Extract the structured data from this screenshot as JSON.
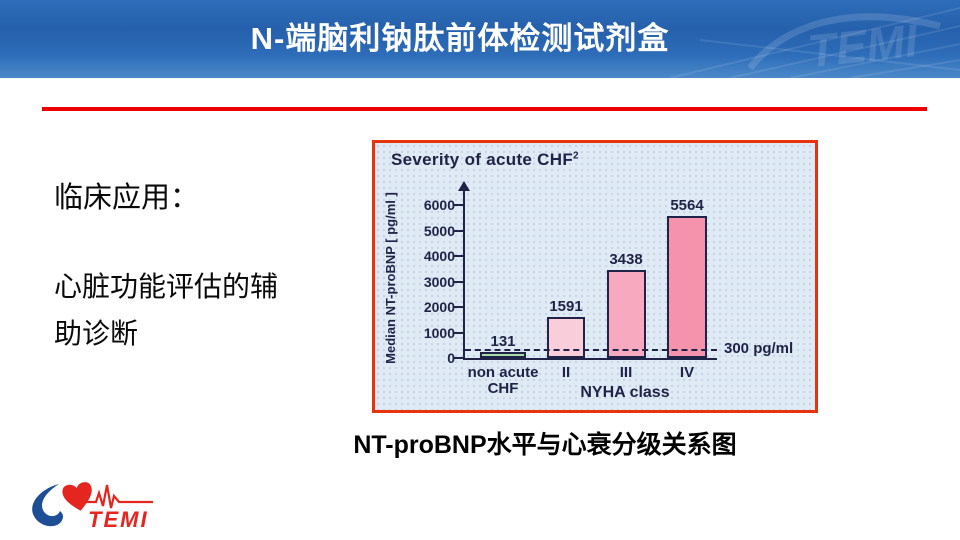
{
  "header": {
    "title": "N-端脑利钠肽前体检测试剂盒",
    "watermark": "TEMI"
  },
  "left_text": {
    "heading": "临床应用：",
    "line1": "心脏功能评估的辅",
    "line2": "助诊断"
  },
  "caption": "NT-proBNP水平与心衰分级关系图",
  "logo": {
    "text": "TEMI"
  },
  "colors": {
    "accent_red": "#ee0000",
    "header_blue_dark": "#2560ac",
    "header_blue_light": "#4c89c9",
    "chart_border": "#e8340c",
    "chart_bg": "#e0eaf5",
    "chart_ink": "#1f2347",
    "logo_red": "#e52520",
    "logo_blue": "#1e4e96"
  },
  "chart_data": {
    "type": "bar",
    "title": "Severity of acute CHF",
    "title_superscript": "2",
    "ylabel": "Median NT-proBNP [ pg/ml ]",
    "xlabel": "NYHA class",
    "categories": [
      "non acute\nCHF",
      "II",
      "III",
      "IV"
    ],
    "values": [
      131,
      1591,
      3438,
      5564
    ],
    "bar_colors": [
      "#a8dca8",
      "#f9cdd9",
      "#f6a9bf",
      "#f593ad"
    ],
    "yticks": [
      0,
      1000,
      2000,
      3000,
      4000,
      5000,
      6000
    ],
    "ylim": [
      0,
      6400
    ],
    "reference_line": {
      "value": 300,
      "label": "300 pg/ml"
    },
    "grid": false,
    "legend": false,
    "legend_position": "none"
  }
}
